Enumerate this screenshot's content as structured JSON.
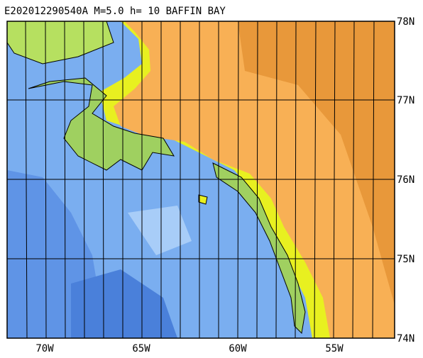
{
  "title": "E202012290540A M=5.0 h= 10 BAFFIN BAY",
  "lat_labels": [
    "78N",
    "77N",
    "76N",
    "75N",
    "74N"
  ],
  "lon_labels": [
    "70W",
    "65W",
    "60W",
    "55W"
  ]
}
